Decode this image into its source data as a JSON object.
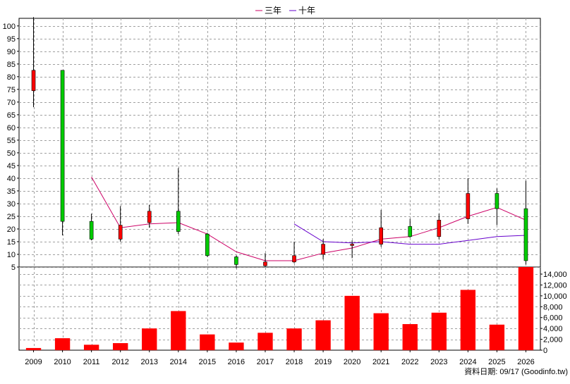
{
  "chart_data": {
    "type": "candlestick-with-volume",
    "categories": [
      "2009",
      "2010",
      "2011",
      "2012",
      "2013",
      "2014",
      "2015",
      "2016",
      "2017",
      "2018",
      "2019",
      "2020",
      "2021",
      "2022",
      "2023",
      "2024",
      "2025",
      "2026"
    ],
    "price_axis": {
      "ticks": [
        5,
        10,
        15,
        20,
        25,
        30,
        35,
        40,
        45,
        50,
        55,
        60,
        65,
        70,
        75,
        80,
        85,
        90,
        95,
        100
      ],
      "range": [
        5,
        103
      ]
    },
    "volume_axis": {
      "ticks": [
        0,
        2000,
        4000,
        6000,
        8000,
        10000,
        12000,
        14000
      ],
      "tick_labels": [
        "0",
        "2,000",
        "4,000",
        "6,000",
        "8,000",
        "10,000",
        "12,000",
        "14,000"
      ],
      "range": [
        0,
        15300
      ]
    },
    "candles": [
      {
        "x": "2009",
        "open": 74.5,
        "high": 103.5,
        "low": 68,
        "close": 82.5,
        "color": "red"
      },
      {
        "x": "2010",
        "open": 82.5,
        "high": 82.5,
        "low": 17.5,
        "close": 23,
        "color": "green"
      },
      {
        "x": "2011",
        "open": 23,
        "high": 26,
        "low": 15.5,
        "close": 16,
        "color": "green"
      },
      {
        "x": "2012",
        "open": 16,
        "high": 29,
        "low": 15,
        "close": 21.5,
        "color": "red"
      },
      {
        "x": "2013",
        "open": 22.5,
        "high": 29.5,
        "low": 20.5,
        "close": 27,
        "color": "red"
      },
      {
        "x": "2014",
        "open": 27,
        "high": 44,
        "low": 18,
        "close": 19,
        "color": "green"
      },
      {
        "x": "2015",
        "open": 18,
        "high": 18.5,
        "low": 9,
        "close": 9.5,
        "color": "green"
      },
      {
        "x": "2016",
        "open": 9,
        "high": 9.5,
        "low": 4.5,
        "close": 6,
        "color": "green"
      },
      {
        "x": "2017",
        "open": 5.5,
        "high": 10.5,
        "low": 5,
        "close": 7,
        "color": "red"
      },
      {
        "x": "2018",
        "open": 7,
        "high": 15,
        "low": 6.5,
        "close": 9.5,
        "color": "red"
      },
      {
        "x": "2019",
        "open": 10,
        "high": 16,
        "low": 8,
        "close": 14,
        "color": "red"
      },
      {
        "x": "2020",
        "open": 13.5,
        "high": 15.5,
        "low": 8.5,
        "close": 14,
        "color": "red"
      },
      {
        "x": "2021",
        "open": 14,
        "high": 27.5,
        "low": 13,
        "close": 20.5,
        "color": "red"
      },
      {
        "x": "2022",
        "open": 21,
        "high": 24,
        "low": 16.5,
        "close": 17,
        "color": "green"
      },
      {
        "x": "2023",
        "open": 17,
        "high": 26,
        "low": 16,
        "close": 23.5,
        "color": "red"
      },
      {
        "x": "2024",
        "open": 24,
        "high": 40,
        "low": 22,
        "close": 34,
        "color": "red"
      },
      {
        "x": "2025",
        "open": 34,
        "high": 36,
        "low": 21.5,
        "close": 28,
        "color": "green"
      },
      {
        "x": "2026",
        "open": 28,
        "high": 39,
        "low": 6,
        "close": 7.5,
        "color": "green"
      }
    ],
    "series": [
      {
        "name": "三年",
        "color": "#cc0066",
        "values": [
          null,
          null,
          40.5,
          20.5,
          22,
          22.5,
          18,
          11,
          7.5,
          7.5,
          10.5,
          12.5,
          16,
          17,
          20.5,
          25,
          28.5,
          23.5
        ]
      },
      {
        "name": "十年",
        "color": "#6600cc",
        "values": [
          null,
          null,
          null,
          null,
          null,
          null,
          null,
          null,
          null,
          22,
          15,
          14.5,
          15,
          14,
          14,
          15.5,
          17,
          17.5
        ]
      }
    ],
    "volume": [
      400,
      2200,
      1000,
      1300,
      4000,
      7200,
      2900,
      1400,
      3200,
      4000,
      5500,
      10000,
      6800,
      4800,
      6900,
      11100,
      4700,
      15300
    ],
    "volume_color": "#ff0000",
    "grid": true,
    "legend_position": "top-center"
  },
  "footer": {
    "source_text": "資料日期: 09/17  (Goodinfo.tw)"
  }
}
